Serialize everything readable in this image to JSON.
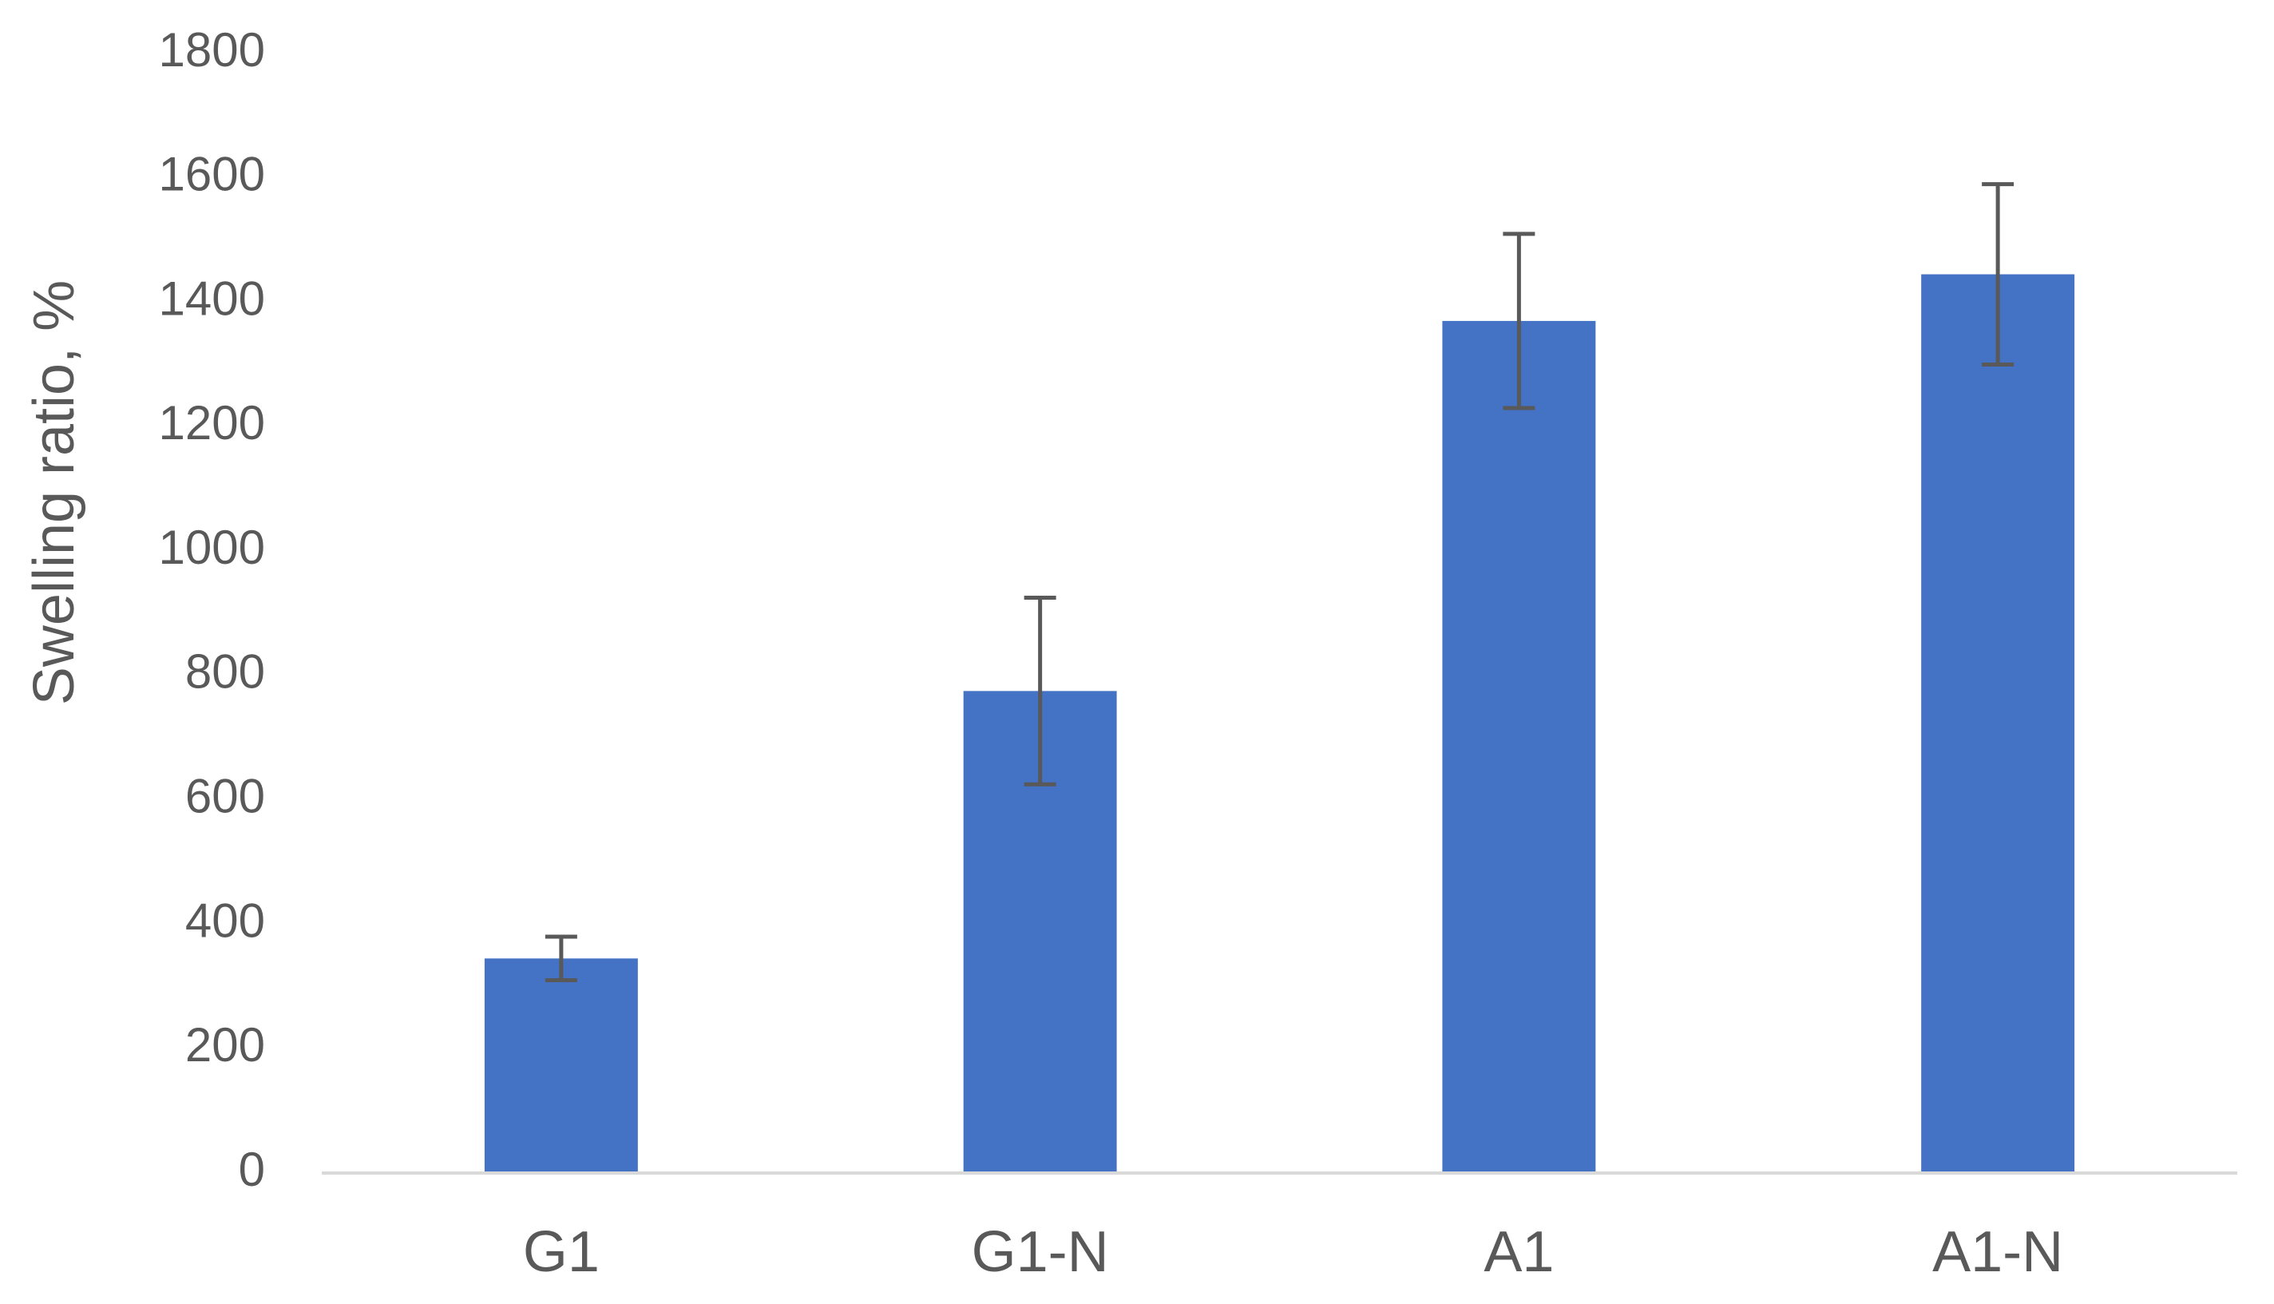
{
  "chart_data": {
    "type": "bar",
    "y_label": "Swelling ratio, %",
    "categories": [
      "G1",
      "G1-N",
      "A1",
      "A1-N"
    ],
    "values": [
      345,
      775,
      1370,
      1445
    ],
    "errors": [
      35,
      150,
      140,
      145
    ],
    "color": "#4472c4",
    "error_color": "#595959",
    "ylim": [
      0,
      1800
    ],
    "yticks": [
      0,
      200,
      400,
      600,
      800,
      1000,
      1200,
      1400,
      1600,
      1800
    ],
    "grid": false
  }
}
